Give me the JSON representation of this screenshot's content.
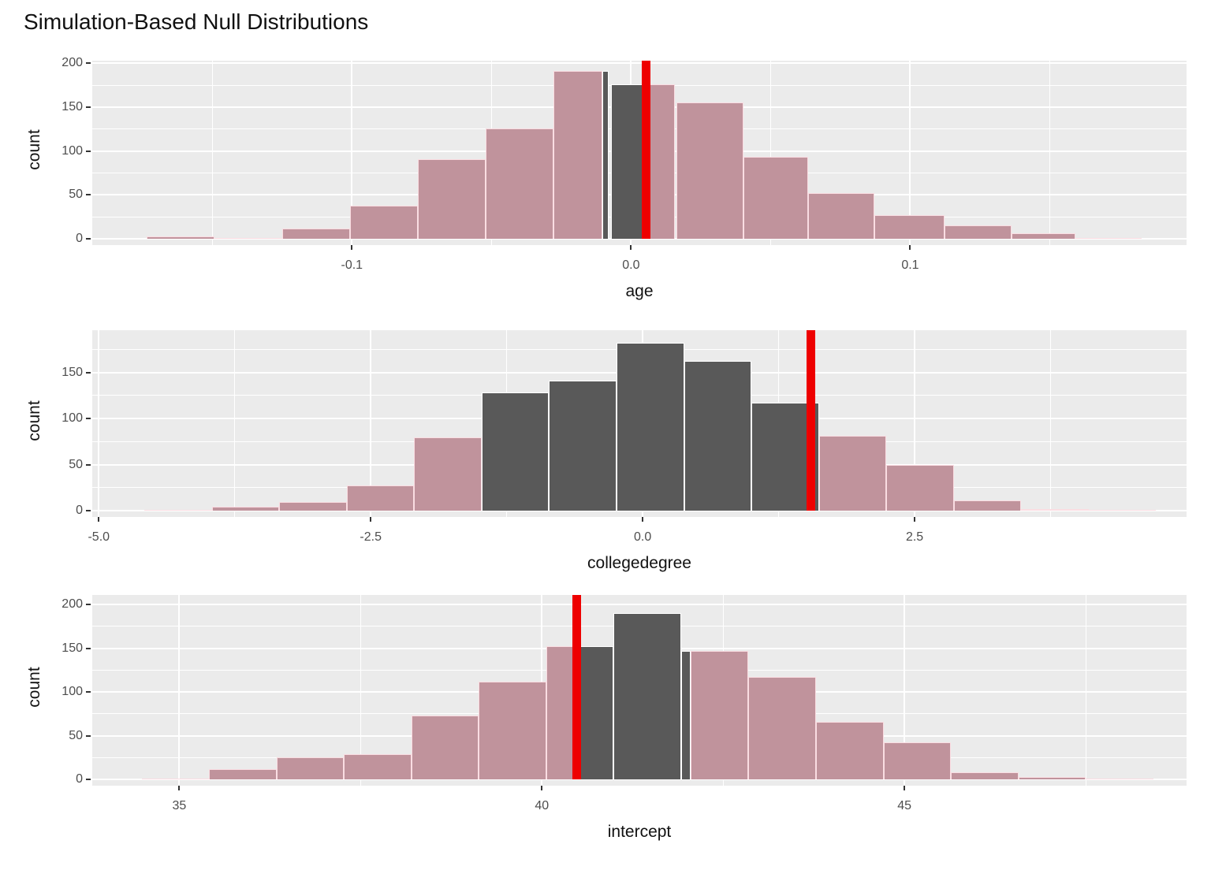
{
  "title": "Simulation-Based Null Distributions",
  "y_axis_title": "count",
  "colors": {
    "histogram_fill": "#c0939c",
    "histogram_border": "#fadde2",
    "unshaded_fill": "#595959",
    "unshaded_border": "#ffffff",
    "observed_line": "#ee0000",
    "panel_background": "#ebebeb",
    "gridline": "#ffffff",
    "tick_text": "#4d4d4d",
    "title_text": "#111111"
  },
  "chart_data": [
    {
      "type": "bar",
      "name": "age",
      "xlabel": "age",
      "ylabel": "count",
      "observed_stat": 0.0054,
      "xlim": [
        -0.193,
        0.199
      ],
      "x_ticks": [
        {
          "v": -0.1,
          "label": "-0.1"
        },
        {
          "v": 0.0,
          "label": "0.0"
        },
        {
          "v": 0.1,
          "label": "0.1"
        }
      ],
      "x_minor": [
        -0.15,
        -0.05,
        0.05,
        0.15
      ],
      "y_ticks": [
        0,
        50,
        100,
        150,
        200
      ],
      "y_minor": [
        25,
        75,
        125,
        175
      ],
      "bars": [
        {
          "x0": -0.1735,
          "x1": -0.1492,
          "count": 3,
          "fill": "pink"
        },
        {
          "x0": -0.1492,
          "x1": -0.125,
          "count": 1,
          "fill": "pink"
        },
        {
          "x0": -0.125,
          "x1": -0.1007,
          "count": 12,
          "fill": "pink"
        },
        {
          "x0": -0.1007,
          "x1": -0.0764,
          "count": 38,
          "fill": "pink"
        },
        {
          "x0": -0.0764,
          "x1": -0.0522,
          "count": 91,
          "fill": "pink"
        },
        {
          "x0": -0.0522,
          "x1": -0.0279,
          "count": 126,
          "fill": "pink"
        },
        {
          "x0": -0.0279,
          "x1": -0.008,
          "count": 191,
          "fill": "split",
          "split_at": -0.0102,
          "left": "pink",
          "right": "dark"
        },
        {
          "x0": -0.0072,
          "x1": 0.0156,
          "count": 176,
          "fill": "split",
          "split_at": 0.0054,
          "left": "dark",
          "right": "pink"
        },
        {
          "x0": 0.0164,
          "x1": 0.0403,
          "count": 155,
          "fill": "pink"
        },
        {
          "x0": 0.0403,
          "x1": 0.0635,
          "count": 93,
          "fill": "pink"
        },
        {
          "x0": 0.0635,
          "x1": 0.0872,
          "count": 52,
          "fill": "pink"
        },
        {
          "x0": 0.0872,
          "x1": 0.1123,
          "count": 27,
          "fill": "pink"
        },
        {
          "x0": 0.1123,
          "x1": 0.1362,
          "count": 15,
          "fill": "pink"
        },
        {
          "x0": 0.1362,
          "x1": 0.1591,
          "count": 6,
          "fill": "pink"
        },
        {
          "x0": 0.1591,
          "x1": 0.1828,
          "count": 1,
          "fill": "pink"
        }
      ]
    },
    {
      "type": "bar",
      "name": "collegedegree",
      "xlabel": "collegedegree",
      "ylabel": "count",
      "observed_stat": 1.55,
      "xlim": [
        -5.06,
        5.0
      ],
      "x_ticks": [
        {
          "v": -5.0,
          "label": "-5.0"
        },
        {
          "v": -2.5,
          "label": "-2.5"
        },
        {
          "v": 0.0,
          "label": "0.0"
        },
        {
          "v": 2.5,
          "label": "2.5"
        }
      ],
      "x_minor": [
        -3.75,
        -1.25,
        1.25,
        3.75
      ],
      "y_ticks": [
        0,
        50,
        100,
        150
      ],
      "y_minor": [
        25,
        75,
        125,
        175
      ],
      "bars": [
        {
          "x0": -4.58,
          "x1": -3.96,
          "count": 1,
          "fill": "pink"
        },
        {
          "x0": -3.96,
          "x1": -3.34,
          "count": 4,
          "fill": "pink"
        },
        {
          "x0": -3.34,
          "x1": -2.72,
          "count": 9,
          "fill": "pink"
        },
        {
          "x0": -2.72,
          "x1": -2.1,
          "count": 27,
          "fill": "pink"
        },
        {
          "x0": -2.1,
          "x1": -1.48,
          "count": 80,
          "fill": "pink"
        },
        {
          "x0": -1.48,
          "x1": -0.86,
          "count": 128,
          "fill": "dark"
        },
        {
          "x0": -0.86,
          "x1": -0.24,
          "count": 141,
          "fill": "dark"
        },
        {
          "x0": -0.24,
          "x1": 0.38,
          "count": 182,
          "fill": "dark"
        },
        {
          "x0": 0.38,
          "x1": 1.0,
          "count": 163,
          "fill": "dark"
        },
        {
          "x0": 1.0,
          "x1": 1.62,
          "count": 117,
          "fill": "dark"
        },
        {
          "x0": 1.62,
          "x1": 2.24,
          "count": 81,
          "fill": "pink"
        },
        {
          "x0": 2.24,
          "x1": 2.86,
          "count": 50,
          "fill": "pink"
        },
        {
          "x0": 2.86,
          "x1": 3.48,
          "count": 11,
          "fill": "pink"
        },
        {
          "x0": 3.48,
          "x1": 4.1,
          "count": 2,
          "fill": "pink"
        },
        {
          "x0": 4.1,
          "x1": 4.72,
          "count": 1,
          "fill": "pink"
        }
      ]
    },
    {
      "type": "bar",
      "name": "intercept",
      "xlabel": "intercept",
      "ylabel": "count",
      "observed_stat": 40.48,
      "xlim": [
        33.8,
        48.89
      ],
      "x_ticks": [
        {
          "v": 35,
          "label": "35"
        },
        {
          "v": 40,
          "label": "40"
        },
        {
          "v": 45,
          "label": "45"
        }
      ],
      "x_minor": [
        37.5,
        42.5,
        47.5
      ],
      "y_ticks": [
        0,
        50,
        100,
        150,
        200
      ],
      "y_minor": [
        25,
        75,
        125,
        175
      ],
      "bars": [
        {
          "x0": 34.48,
          "x1": 35.41,
          "count": 1,
          "fill": "pink"
        },
        {
          "x0": 35.41,
          "x1": 36.34,
          "count": 12,
          "fill": "pink"
        },
        {
          "x0": 36.34,
          "x1": 37.27,
          "count": 25,
          "fill": "pink"
        },
        {
          "x0": 37.27,
          "x1": 38.2,
          "count": 29,
          "fill": "pink"
        },
        {
          "x0": 38.2,
          "x1": 39.13,
          "count": 73,
          "fill": "pink"
        },
        {
          "x0": 39.13,
          "x1": 40.06,
          "count": 112,
          "fill": "pink"
        },
        {
          "x0": 40.06,
          "x1": 40.99,
          "count": 152,
          "fill": "split",
          "split_at": 40.48,
          "left": "pink",
          "right": "dark"
        },
        {
          "x0": 40.99,
          "x1": 41.92,
          "count": 190,
          "fill": "dark"
        },
        {
          "x0": 41.92,
          "x1": 42.85,
          "count": 147,
          "fill": "split",
          "split_at": 42.05,
          "left": "dark",
          "right": "pink"
        },
        {
          "x0": 42.85,
          "x1": 43.78,
          "count": 117,
          "fill": "pink"
        },
        {
          "x0": 43.78,
          "x1": 44.71,
          "count": 66,
          "fill": "pink"
        },
        {
          "x0": 44.71,
          "x1": 45.64,
          "count": 42,
          "fill": "pink"
        },
        {
          "x0": 45.64,
          "x1": 46.57,
          "count": 8,
          "fill": "pink"
        },
        {
          "x0": 46.57,
          "x1": 47.5,
          "count": 3,
          "fill": "pink"
        },
        {
          "x0": 47.5,
          "x1": 48.43,
          "count": 1,
          "fill": "pink"
        }
      ]
    }
  ]
}
